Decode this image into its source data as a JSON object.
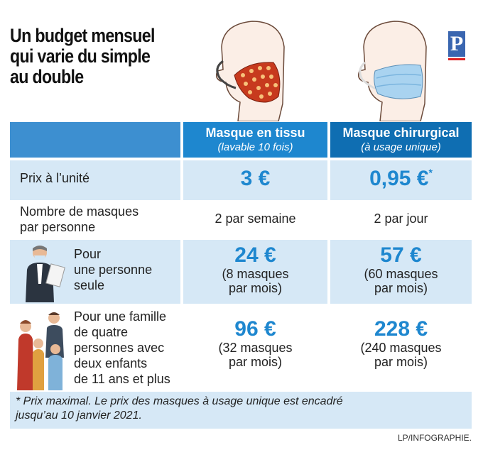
{
  "title": {
    "line1": "Un budget mensuel",
    "line2": "qui varie du simple",
    "line3": "au double"
  },
  "logo": {
    "letter": "P"
  },
  "headers": [
    {
      "main": "Masque en tissu",
      "sub": "(lavable 10 fois)"
    },
    {
      "main": "Masque chirurgical",
      "sub": "(à usage unique)"
    }
  ],
  "rows": [
    {
      "label": "Prix à l’unité",
      "tissu": "3 €",
      "chirurgical": "0,95 €",
      "chirurgical_mark": "*"
    },
    {
      "label_line1": "Nombre de masques",
      "label_line2": "par personne",
      "tissu": "2 par semaine",
      "chirurgical": "2 par jour"
    },
    {
      "label_line1": "Pour",
      "label_line2": "une personne",
      "label_line3": "seule",
      "tissu": "24 €",
      "tissu_detail1": "(8 masques",
      "tissu_detail2": "par mois)",
      "chirurgical": "57 €",
      "chirurgical_detail1": "(60 masques",
      "chirurgical_detail2": "par mois)"
    },
    {
      "label_line1": "Pour une famille",
      "label_line2": "de quatre",
      "label_line3": "personnes avec",
      "label_line4": "deux enfants",
      "label_line5": "de 11 ans et plus",
      "tissu": "96 €",
      "tissu_detail1": "(32 masques",
      "tissu_detail2": "par mois)",
      "chirurgical": "228 €",
      "chirurgical_detail1": "(240 masques",
      "chirurgical_detail2": "par mois)"
    }
  ],
  "footnote": {
    "line1": "* Prix maximal. Le prix des masques à usage unique est encadré",
    "line2": "jusqu’au 10 janvier 2021."
  },
  "credit": "LP/INFOGRAPHIE.",
  "colors": {
    "header_light": "#1e87cf",
    "header_dark": "#0f6eb2",
    "row_blue": "#d6e8f6",
    "accent": "#1e87cf",
    "mask_fabric": "#c73a1e"
  }
}
